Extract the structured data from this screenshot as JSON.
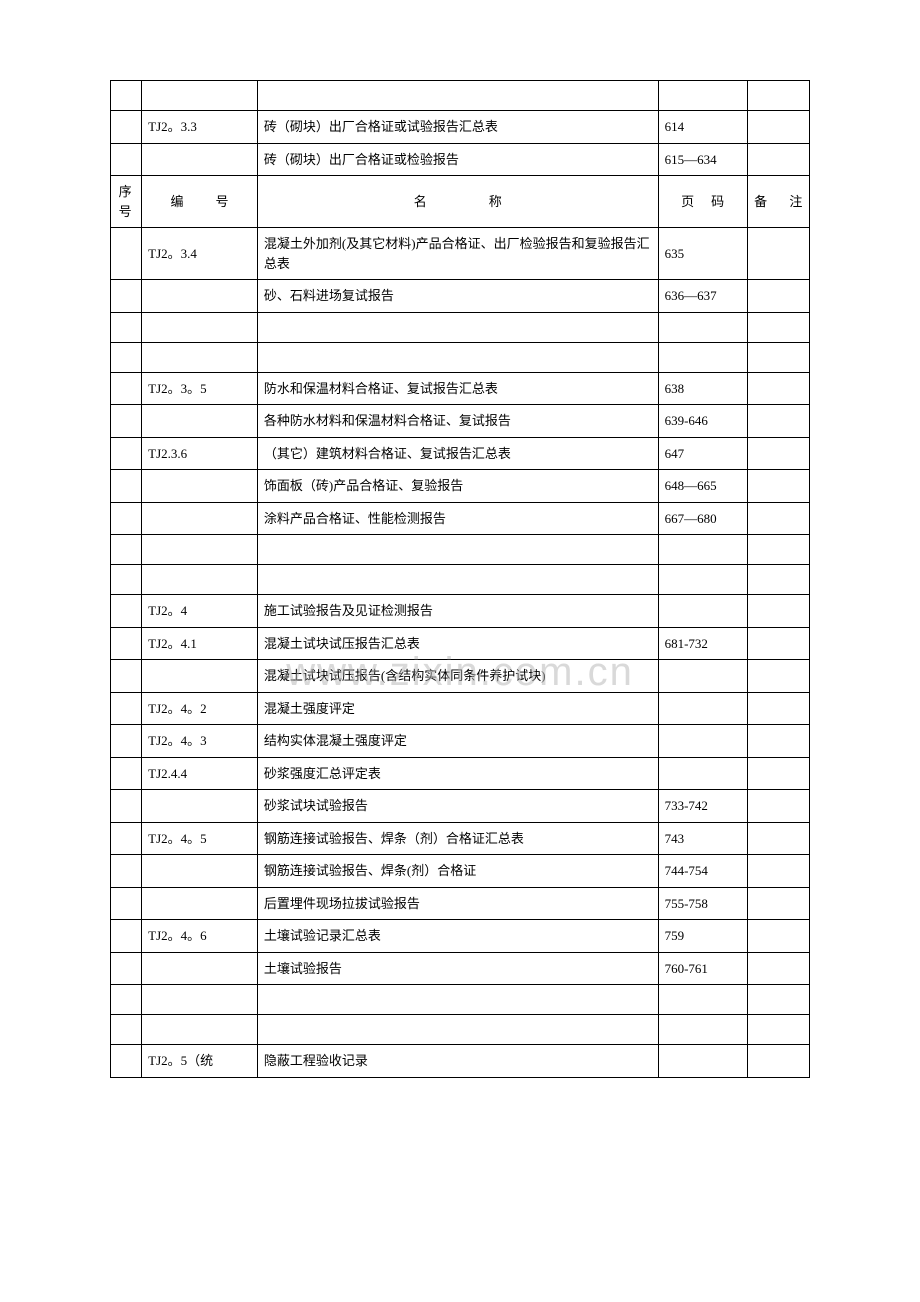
{
  "watermark": "www.zixin.com.cn",
  "headers": {
    "col1": "序号",
    "col2": "编　　号",
    "col3": "名　　　　称",
    "col4": "页　码",
    "col5": "备　 注"
  },
  "rows": [
    {
      "c1": "",
      "c2": "",
      "c3": "",
      "c4": "",
      "c5": "",
      "empty": true
    },
    {
      "c1": "",
      "c2": "TJ2。3.3",
      "c3": "砖（砌块）出厂合格证或试验报告汇总表",
      "c4": "614",
      "c5": ""
    },
    {
      "c1": "",
      "c2": "",
      "c3": "砖（砌块）出厂合格证或检验报告",
      "c4": "615—634",
      "c5": ""
    },
    {
      "header": true
    },
    {
      "c1": "",
      "c2": "TJ2。3.4",
      "c3": "混凝土外加剂(及其它材料)产品合格证、出厂检验报告和复验报告汇总表",
      "c4": "635",
      "c5": ""
    },
    {
      "c1": "",
      "c2": "",
      "c3": "砂、石料进场复试报告",
      "c4": "636—637",
      "c5": ""
    },
    {
      "c1": "",
      "c2": "",
      "c3": "",
      "c4": "",
      "c5": "",
      "empty": true
    },
    {
      "c1": "",
      "c2": "",
      "c3": "",
      "c4": "",
      "c5": "",
      "empty": true
    },
    {
      "c1": "",
      "c2": "TJ2。3。5",
      "c3": "防水和保温材料合格证、复试报告汇总表",
      "c4": "638",
      "c5": ""
    },
    {
      "c1": "",
      "c2": "",
      "c3": "各种防水材料和保温材料合格证、复试报告",
      "c4": "639-646",
      "c5": ""
    },
    {
      "c1": "",
      "c2": "TJ2.3.6",
      "c3": "（其它）建筑材料合格证、复试报告汇总表",
      "c4": "647",
      "c5": ""
    },
    {
      "c1": "",
      "c2": "",
      "c3": "饰面板（砖)产品合格证、复验报告",
      "c4": "648—665",
      "c5": ""
    },
    {
      "c1": "",
      "c2": "",
      "c3": "涂料产品合格证、性能检测报告",
      "c4": "667—680",
      "c5": ""
    },
    {
      "c1": "",
      "c2": "",
      "c3": "",
      "c4": "",
      "c5": "",
      "empty": true
    },
    {
      "c1": "",
      "c2": "",
      "c3": "",
      "c4": "",
      "c5": "",
      "empty": true
    },
    {
      "c1": "",
      "c2": "TJ2。4",
      "c3": "施工试验报告及见证检测报告",
      "c4": "",
      "c5": ""
    },
    {
      "c1": "",
      "c2": "TJ2。4.1",
      "c3": "混凝土试块试压报告汇总表",
      "c4": "681-732",
      "c5": ""
    },
    {
      "c1": "",
      "c2": "",
      "c3": "混凝土试块试压报告(含结构实体同条件养护试块)",
      "c4": "",
      "c5": ""
    },
    {
      "c1": "",
      "c2": "TJ2。4。2",
      "c3": "混凝土强度评定",
      "c4": "",
      "c5": ""
    },
    {
      "c1": "",
      "c2": "TJ2。4。3",
      "c3": "结构实体混凝土强度评定",
      "c4": "",
      "c5": ""
    },
    {
      "c1": "",
      "c2": "TJ2.4.4",
      "c3": "砂浆强度汇总评定表",
      "c4": "",
      "c5": ""
    },
    {
      "c1": "",
      "c2": "",
      "c3": "砂浆试块试验报告",
      "c4": "733-742",
      "c5": ""
    },
    {
      "c1": "",
      "c2": "TJ2。4。5",
      "c3": "钢筋连接试验报告、焊条（剂）合格证汇总表",
      "c4": "743",
      "c5": ""
    },
    {
      "c1": "",
      "c2": "",
      "c3": "钢筋连接试验报告、焊条(剂）合格证",
      "c4": "744-754",
      "c5": ""
    },
    {
      "c1": "",
      "c2": "",
      "c3": "后置埋件现场拉拔试验报告",
      "c4": "755-758",
      "c5": ""
    },
    {
      "c1": "",
      "c2": "TJ2。4。6",
      "c3": "土壤试验记录汇总表",
      "c4": "759",
      "c5": ""
    },
    {
      "c1": "",
      "c2": "",
      "c3": "土壤试验报告",
      "c4": "760-761",
      "c5": ""
    },
    {
      "c1": "",
      "c2": "",
      "c3": "",
      "c4": "",
      "c5": "",
      "empty": true
    },
    {
      "c1": "",
      "c2": "",
      "c3": "",
      "c4": "",
      "c5": "",
      "empty": true
    },
    {
      "c1": "",
      "c2": "TJ2。5（统",
      "c3": "隐蔽工程验收记录",
      "c4": "",
      "c5": ""
    }
  ]
}
